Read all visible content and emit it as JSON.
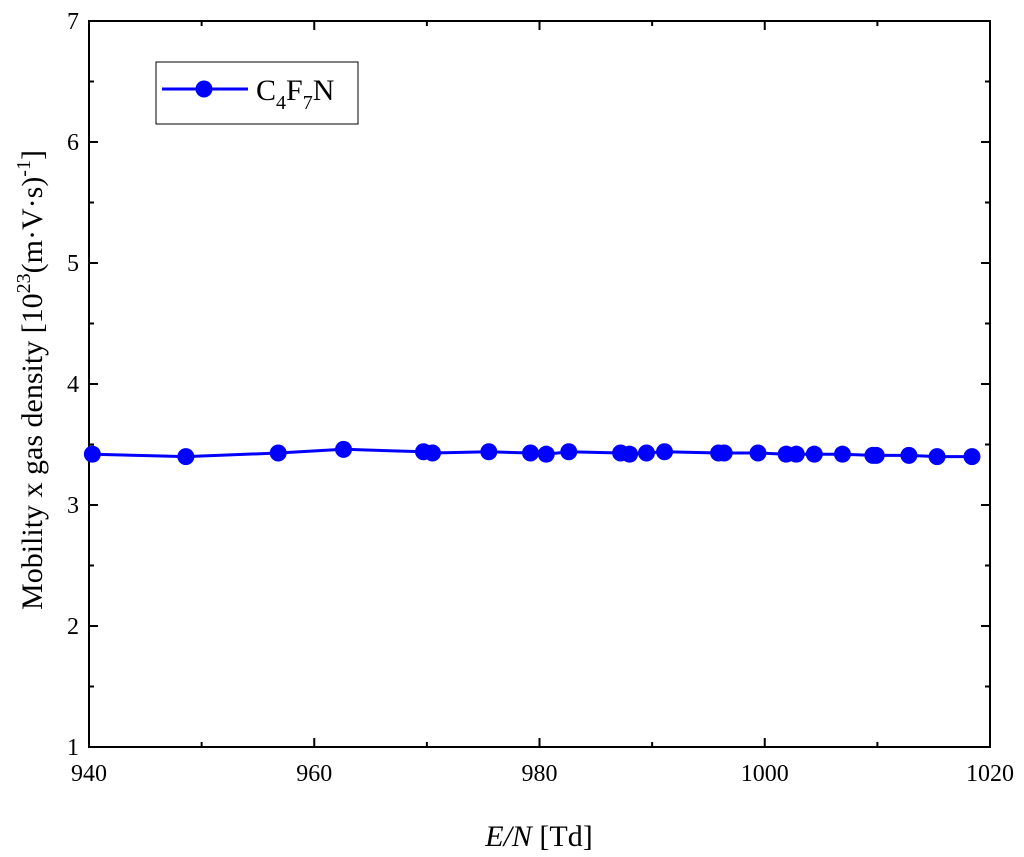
{
  "chart_data": {
    "type": "line",
    "title": "",
    "xlabel": {
      "italic": "E/N",
      "rest": " [Td]"
    },
    "ylabel": {
      "prefix": "Mobility x gas density [10",
      "exp": "23",
      "mid": "(m·V·s)",
      "exp2": "-1",
      "suffix": "]"
    },
    "xlim": [
      940,
      1020
    ],
    "ylim": [
      1,
      7
    ],
    "xticks": [
      940,
      960,
      980,
      1000,
      1020
    ],
    "yticks": [
      1,
      2,
      3,
      4,
      5,
      6,
      7
    ],
    "grid": false,
    "legend_position": "top-left",
    "series": [
      {
        "name": {
          "c": "C",
          "s1": "4",
          "f": "F",
          "s2": "7",
          "n": "N"
        },
        "color": "#0000ff",
        "marker": "circle",
        "x": [
          940.3,
          948.6,
          956.8,
          962.6,
          969.7,
          970.5,
          975.5,
          979.2,
          980.6,
          982.6,
          987.2,
          988.0,
          989.5,
          991.1,
          995.9,
          996.4,
          999.4,
          1001.9,
          1002.8,
          1004.4,
          1006.9,
          1009.6,
          1009.9,
          1012.8,
          1015.3,
          1018.4
        ],
        "y": [
          3.42,
          3.4,
          3.43,
          3.46,
          3.44,
          3.43,
          3.44,
          3.43,
          3.42,
          3.44,
          3.43,
          3.42,
          3.43,
          3.44,
          3.43,
          3.43,
          3.43,
          3.42,
          3.42,
          3.42,
          3.42,
          3.41,
          3.41,
          3.41,
          3.4,
          3.4
        ]
      }
    ]
  }
}
